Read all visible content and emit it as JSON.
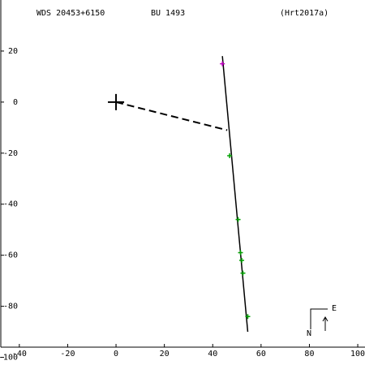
{
  "chart_data": {
    "type": "scatter",
    "titles": [
      "WDS 20453+6150",
      "BU 1493",
      "(Hrt2017a)"
    ],
    "xlim": [
      -48,
      103
    ],
    "ylim": [
      -103,
      40
    ],
    "xticks": [
      -40,
      -20,
      0,
      20,
      40,
      60,
      80,
      100
    ],
    "yticks": [
      20,
      0,
      -20,
      -40,
      -60,
      -80,
      -100
    ],
    "lines": [
      {
        "x": [
          44,
          54.5
        ],
        "y": [
          18,
          -90
        ],
        "color": "#000000",
        "dashed": false
      },
      {
        "x": [
          0,
          46
        ],
        "y": [
          0,
          -11
        ],
        "color": "#000000",
        "dashed": true
      }
    ],
    "series": [
      {
        "color": "#00a000",
        "x": [
          47,
          50.5,
          51.5,
          52,
          52.5,
          54.5
        ],
        "y": [
          -21,
          -46,
          -59,
          -62,
          -67,
          -84
        ]
      },
      {
        "color": "#c000c0",
        "x": [
          44
        ],
        "y": [
          15
        ]
      }
    ],
    "primary": {
      "x": 0,
      "y": 0
    },
    "compass": [
      "N",
      "E"
    ]
  }
}
